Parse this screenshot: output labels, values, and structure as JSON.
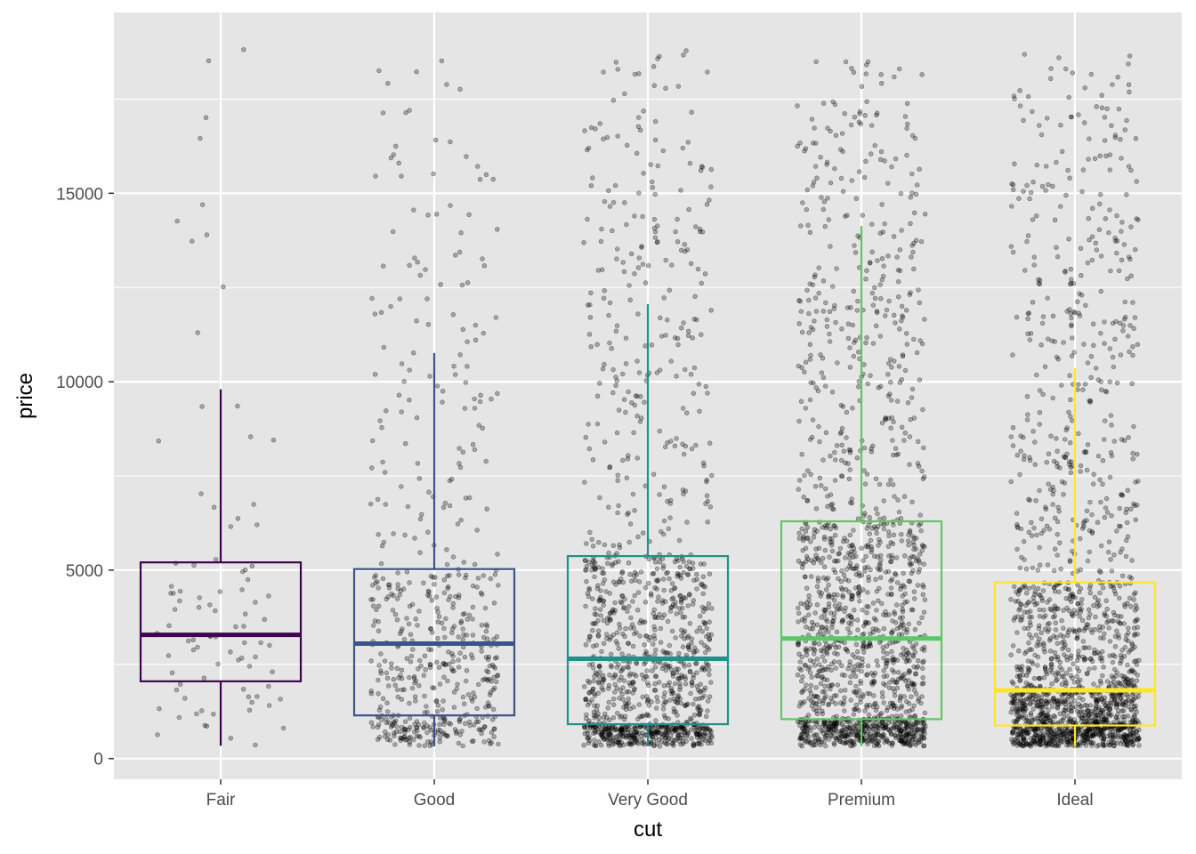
{
  "chart_data": {
    "type": "box",
    "xlabel": "cut",
    "ylabel": "price",
    "categories": [
      "Fair",
      "Good",
      "Very Good",
      "Premium",
      "Ideal"
    ],
    "ylim": [
      -550,
      19800
    ],
    "yticks": [
      0,
      5000,
      10000,
      15000
    ],
    "grid": true,
    "legend": "none",
    "colors": [
      "#440154",
      "#3b528b",
      "#21908c",
      "#5dc863",
      "#fde725"
    ],
    "background": "#e5e5e5",
    "point_color": "#000000",
    "point_alpha": 0.3,
    "jitter_point_density": [
      90,
      560,
      1250,
      1600,
      1750
    ],
    "boxes": [
      {
        "category": "Fair",
        "lower_whisker": 337,
        "q1": 2050,
        "median": 3282,
        "q3": 5206,
        "upper_whisker": 9800
      },
      {
        "category": "Good",
        "lower_whisker": 327,
        "q1": 1145,
        "median": 3050,
        "q3": 5028,
        "upper_whisker": 10760
      },
      {
        "category": "Very Good",
        "lower_whisker": 336,
        "q1": 912,
        "median": 2648,
        "q3": 5373,
        "upper_whisker": 12060
      },
      {
        "category": "Premium",
        "lower_whisker": 326,
        "q1": 1046,
        "median": 3185,
        "q3": 6296,
        "upper_whisker": 14130
      },
      {
        "category": "Ideal",
        "lower_whisker": 326,
        "q1": 878,
        "median": 1810,
        "q3": 4678,
        "upper_whisker": 10370
      }
    ]
  }
}
